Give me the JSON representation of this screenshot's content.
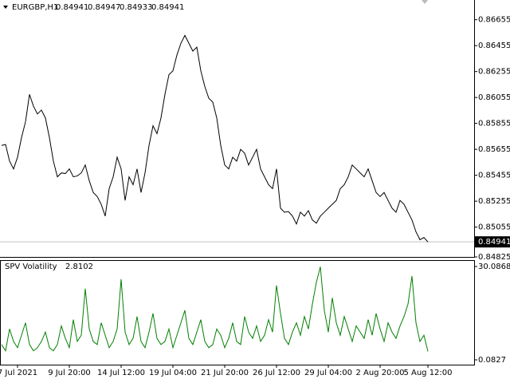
{
  "chart_data": [
    {
      "type": "line",
      "symbol": "EURGBP,H1",
      "ohlc": [
        0.84941,
        0.84947,
        0.84933,
        0.84941
      ],
      "categories": [
        null,
        null,
        null,
        null,
        "7 Jul 2021",
        null,
        null,
        null,
        null,
        null,
        null,
        null,
        null,
        null,
        null,
        null,
        null,
        "9 Jul 20:00",
        null,
        null,
        null,
        null,
        null,
        null,
        null,
        null,
        null,
        null,
        null,
        null,
        "14 Jul 12:00",
        null,
        null,
        null,
        null,
        null,
        null,
        null,
        null,
        null,
        null,
        null,
        null,
        "19 Jul 04:00",
        null,
        null,
        null,
        null,
        null,
        null,
        null,
        null,
        null,
        null,
        null,
        null,
        "21 Jul 20:00",
        null,
        null,
        null,
        null,
        null,
        null,
        null,
        null,
        null,
        null,
        null,
        null,
        "26 Jul 12:00",
        null,
        null,
        null,
        null,
        null,
        null,
        null,
        null,
        null,
        null,
        null,
        null,
        "29 Jul 04:00",
        null,
        null,
        null,
        null,
        null,
        null,
        null,
        null,
        null,
        null,
        null,
        null,
        "2 Aug 20:00",
        null,
        null,
        null,
        null,
        null,
        null,
        null,
        null,
        null,
        null,
        null,
        "5 Aug 12:00"
      ],
      "series": [
        {
          "color": "#000000",
          "values": [
            0.85685,
            0.85692,
            0.85564,
            0.85504,
            0.85594,
            0.85746,
            0.85867,
            0.86079,
            0.85988,
            0.85928,
            0.85958,
            0.85897,
            0.85746,
            0.85564,
            0.85443,
            0.85473,
            0.85468,
            0.85504,
            0.85443,
            0.8545,
            0.85473,
            0.85534,
            0.85413,
            0.85322,
            0.85291,
            0.85231,
            0.8514,
            0.85352,
            0.85443,
            0.85594,
            0.85504,
            0.85261,
            0.85443,
            0.85382,
            0.85504,
            0.85322,
            0.85473,
            0.85685,
            0.85837,
            0.85776,
            0.85897,
            0.86079,
            0.86231,
            0.86261,
            0.86382,
            0.86473,
            0.86534,
            0.86473,
            0.86413,
            0.86443,
            0.86261,
            0.8614,
            0.86049,
            0.86019,
            0.85897,
            0.85685,
            0.85534,
            0.85504,
            0.85594,
            0.85564,
            0.85655,
            0.85625,
            0.85534,
            0.85594,
            0.85655,
            0.85504,
            0.85443,
            0.85382,
            0.85352,
            0.85504,
            0.85201,
            0.8517,
            0.85175,
            0.8514,
            0.85079,
            0.8517,
            0.8514,
            0.85182,
            0.8511,
            0.85085,
            0.8514,
            0.8517,
            0.85201,
            0.85231,
            0.85261,
            0.85352,
            0.85382,
            0.85443,
            0.85534,
            0.85504,
            0.85473,
            0.85443,
            0.85504,
            0.85413,
            0.85322,
            0.85291,
            0.85322,
            0.85261,
            0.85201,
            0.8517,
            0.85261,
            0.85231,
            0.8517,
            0.8511,
            0.85019,
            0.84958,
            0.84975,
            0.84941
          ]
        }
      ],
      "ylim": [
        0.84825,
        0.86807
      ],
      "yticks": [
        0.86655,
        0.86455,
        0.86255,
        0.86055,
        0.85855,
        0.85655,
        0.85455,
        0.85255,
        0.85055,
        0.84825
      ]
    },
    {
      "type": "line",
      "title": "SPV Volatility",
      "series": [
        {
          "color": "#008000",
          "values": [
            5,
            3,
            10,
            6,
            4,
            8,
            12,
            5,
            3,
            4,
            6,
            9,
            4,
            3,
            5,
            11,
            7,
            4,
            13,
            6,
            8,
            23,
            10,
            6,
            5,
            12,
            8,
            4,
            6,
            10,
            26,
            9,
            5,
            7,
            14,
            6,
            4,
            9,
            15,
            7,
            5,
            6,
            10,
            4,
            8,
            12,
            16,
            7,
            5,
            9,
            13,
            6,
            4,
            5,
            10,
            8,
            4,
            7,
            12,
            6,
            5,
            14,
            9,
            7,
            11,
            6,
            8,
            13,
            9,
            24,
            15,
            7,
            5,
            9,
            12,
            8,
            14,
            10,
            18,
            25,
            30,
            16,
            9,
            20,
            12,
            8,
            14,
            10,
            6,
            11,
            9,
            7,
            13,
            8,
            15,
            10,
            6,
            12,
            9,
            7,
            11,
            14,
            18,
            27,
            12,
            6,
            8,
            2.8102
          ]
        }
      ],
      "ylim": [
        0.0827,
        30.0868
      ],
      "yticks": [
        30.0868,
        0.0827
      ]
    }
  ]
}
